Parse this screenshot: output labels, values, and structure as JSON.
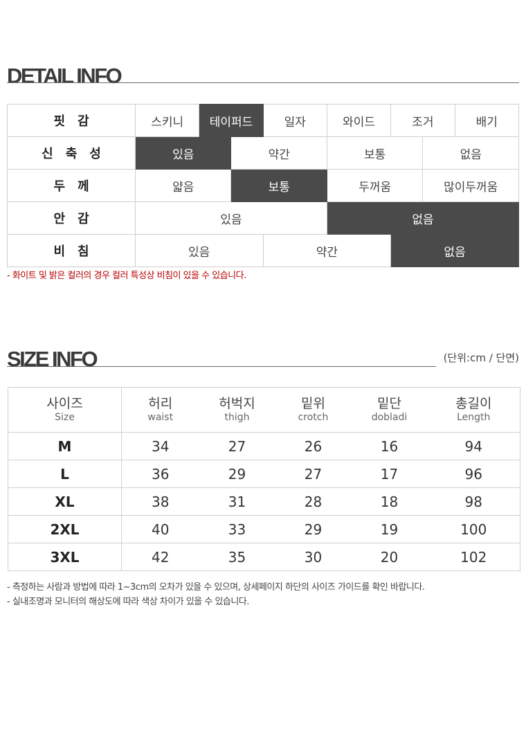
{
  "detail": {
    "title": "DETAIL INFO",
    "rows": [
      {
        "label": "핏감",
        "cells": [
          {
            "text": "스키니",
            "span": 2,
            "selected": false
          },
          {
            "text": "테이퍼드",
            "span": 2,
            "selected": true
          },
          {
            "text": "일자",
            "span": 2,
            "selected": false
          },
          {
            "text": "와이드",
            "span": 2,
            "selected": false
          },
          {
            "text": "조거",
            "span": 2,
            "selected": false
          },
          {
            "text": "배기",
            "span": 2,
            "selected": false
          }
        ]
      },
      {
        "label": "신축성",
        "cells": [
          {
            "text": "있음",
            "span": 3,
            "selected": true
          },
          {
            "text": "약간",
            "span": 3,
            "selected": false
          },
          {
            "text": "보통",
            "span": 3,
            "selected": false
          },
          {
            "text": "없음",
            "span": 3,
            "selected": false
          }
        ]
      },
      {
        "label": "두께",
        "cells": [
          {
            "text": "얇음",
            "span": 3,
            "selected": false
          },
          {
            "text": "보통",
            "span": 3,
            "selected": true
          },
          {
            "text": "두꺼움",
            "span": 3,
            "selected": false
          },
          {
            "text": "많이두꺼움",
            "span": 3,
            "selected": false
          }
        ]
      },
      {
        "label": "안감",
        "cells": [
          {
            "text": "있음",
            "span": 6,
            "selected": false
          },
          {
            "text": "없음",
            "span": 6,
            "selected": true
          }
        ]
      },
      {
        "label": "비침",
        "cells": [
          {
            "text": "있음",
            "span": 4,
            "selected": false
          },
          {
            "text": "약간",
            "span": 4,
            "selected": false
          },
          {
            "text": "없음",
            "span": 4,
            "selected": true
          }
        ]
      }
    ],
    "note": "- 화이트 및 밝은 컬러의 경우 컬러 특성상 비침이 있을 수 있습니다."
  },
  "size": {
    "title": "SIZE INFO",
    "unit": "(단위:cm / 단면)",
    "headers": [
      {
        "ko": "사이즈",
        "en": "Size"
      },
      {
        "ko": "허리",
        "en": "waist"
      },
      {
        "ko": "허벅지",
        "en": "thigh"
      },
      {
        "ko": "밑위",
        "en": "crotch"
      },
      {
        "ko": "밑단",
        "en": "dobladi"
      },
      {
        "ko": "총길이",
        "en": "Length"
      }
    ],
    "rows": [
      [
        "M",
        "34",
        "27",
        "26",
        "16",
        "94"
      ],
      [
        "L",
        "36",
        "29",
        "27",
        "17",
        "96"
      ],
      [
        "XL",
        "38",
        "31",
        "28",
        "18",
        "98"
      ],
      [
        "2XL",
        "40",
        "33",
        "29",
        "19",
        "100"
      ],
      [
        "3XL",
        "42",
        "35",
        "30",
        "20",
        "102"
      ]
    ],
    "notes": [
      "- 측정하는 사람과 방법에 따라 1~3cm의 오차가 있을 수 있으며, 상세페이지 하단의 사이즈 가이드를 확인 바랍니다.",
      "- 실내조명과 모니터의 해상도에 따라 색상 차이가 있을 수 있습니다."
    ]
  }
}
